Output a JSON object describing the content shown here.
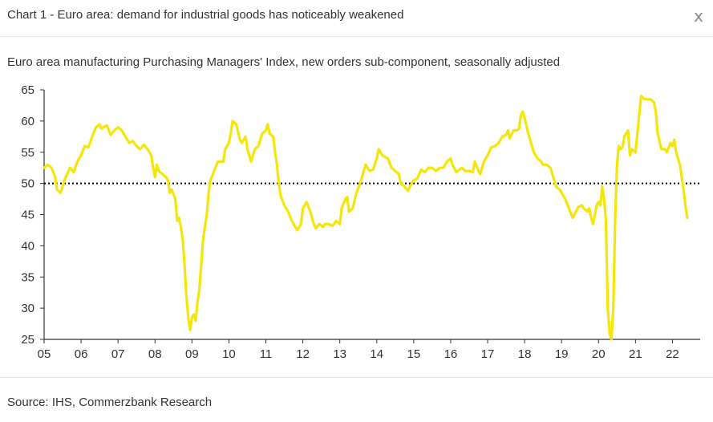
{
  "dialog": {
    "title": "Chart 1 - Euro area: demand for industrial goods has noticeably weakened",
    "close_label": "x"
  },
  "source": "Source: IHS, Commerzbank Research",
  "chart_data": {
    "type": "line",
    "title": "Euro area manufacturing Purchasing Managers' Index, new orders sub-component, seasonally adjusted",
    "xlabel": "",
    "ylabel": "",
    "ylim": [
      25,
      65
    ],
    "xlim": [
      2005.0,
      2022.75
    ],
    "yticks": [
      25,
      30,
      35,
      40,
      45,
      50,
      55,
      60,
      65
    ],
    "xticks": [
      {
        "value": 2005.0,
        "label": "05"
      },
      {
        "value": 2006.0,
        "label": "06"
      },
      {
        "value": 2007.0,
        "label": "07"
      },
      {
        "value": 2008.0,
        "label": "08"
      },
      {
        "value": 2009.0,
        "label": "09"
      },
      {
        "value": 2010.0,
        "label": "10"
      },
      {
        "value": 2011.0,
        "label": "11"
      },
      {
        "value": 2012.0,
        "label": "12"
      },
      {
        "value": 2013.0,
        "label": "13"
      },
      {
        "value": 2014.0,
        "label": "14"
      },
      {
        "value": 2015.0,
        "label": "15"
      },
      {
        "value": 2016.0,
        "label": "16"
      },
      {
        "value": 2017.0,
        "label": "17"
      },
      {
        "value": 2018.0,
        "label": "18"
      },
      {
        "value": 2019.0,
        "label": "19"
      },
      {
        "value": 2020.0,
        "label": "20"
      },
      {
        "value": 2021.0,
        "label": "21"
      },
      {
        "value": 2022.0,
        "label": "22"
      }
    ],
    "reference_line": {
      "value": 50,
      "style": "dotted"
    },
    "grid": false,
    "legend": "none",
    "series": [
      {
        "name": "Euro area manufacturing PMI new orders",
        "color": "#f5e60a",
        "points": [
          [
            2005.0,
            52.5
          ],
          [
            2005.1,
            53.0
          ],
          [
            2005.2,
            52.5
          ],
          [
            2005.3,
            51.0
          ],
          [
            2005.35,
            49.0
          ],
          [
            2005.45,
            48.5
          ],
          [
            2005.55,
            50.5
          ],
          [
            2005.7,
            52.5
          ],
          [
            2005.8,
            51.8
          ],
          [
            2005.9,
            53.5
          ],
          [
            2006.0,
            54.5
          ],
          [
            2006.1,
            56.0
          ],
          [
            2006.2,
            55.8
          ],
          [
            2006.3,
            57.5
          ],
          [
            2006.4,
            59.0
          ],
          [
            2006.5,
            59.5
          ],
          [
            2006.55,
            58.8
          ],
          [
            2006.7,
            59.3
          ],
          [
            2006.8,
            57.8
          ],
          [
            2006.9,
            58.5
          ],
          [
            2007.0,
            59.0
          ],
          [
            2007.1,
            58.5
          ],
          [
            2007.2,
            57.5
          ],
          [
            2007.3,
            56.5
          ],
          [
            2007.4,
            56.8
          ],
          [
            2007.5,
            56.0
          ],
          [
            2007.6,
            55.5
          ],
          [
            2007.7,
            56.2
          ],
          [
            2007.8,
            55.5
          ],
          [
            2007.9,
            54.5
          ],
          [
            2007.95,
            52.5
          ],
          [
            2008.0,
            51.0
          ],
          [
            2008.05,
            53.0
          ],
          [
            2008.1,
            52.0
          ],
          [
            2008.2,
            51.5
          ],
          [
            2008.3,
            51.0
          ],
          [
            2008.35,
            50.5
          ],
          [
            2008.4,
            48.5
          ],
          [
            2008.45,
            49.0
          ],
          [
            2008.55,
            47.5
          ],
          [
            2008.6,
            44.0
          ],
          [
            2008.65,
            44.5
          ],
          [
            2008.7,
            43.0
          ],
          [
            2008.75,
            41.0
          ],
          [
            2008.8,
            37.0
          ],
          [
            2008.85,
            32.0
          ],
          [
            2008.9,
            28.5
          ],
          [
            2008.95,
            26.5
          ],
          [
            2009.0,
            28.5
          ],
          [
            2009.05,
            29.0
          ],
          [
            2009.1,
            28.0
          ],
          [
            2009.15,
            31.0
          ],
          [
            2009.2,
            33.0
          ],
          [
            2009.25,
            37.0
          ],
          [
            2009.3,
            41.0
          ],
          [
            2009.35,
            43.0
          ],
          [
            2009.4,
            45.0
          ],
          [
            2009.45,
            48.5
          ],
          [
            2009.5,
            50.5
          ],
          [
            2009.6,
            52.0
          ],
          [
            2009.7,
            53.5
          ],
          [
            2009.8,
            53.5
          ],
          [
            2009.85,
            53.5
          ],
          [
            2009.9,
            55.5
          ],
          [
            2010.0,
            56.5
          ],
          [
            2010.05,
            58.0
          ],
          [
            2010.1,
            60.0
          ],
          [
            2010.2,
            59.5
          ],
          [
            2010.3,
            57.0
          ],
          [
            2010.35,
            56.5
          ],
          [
            2010.45,
            57.5
          ],
          [
            2010.5,
            55.5
          ],
          [
            2010.6,
            53.5
          ],
          [
            2010.7,
            55.5
          ],
          [
            2010.8,
            56.0
          ],
          [
            2010.9,
            58.0
          ],
          [
            2011.0,
            58.5
          ],
          [
            2011.05,
            59.5
          ],
          [
            2011.1,
            58.0
          ],
          [
            2011.2,
            57.5
          ],
          [
            2011.25,
            55.0
          ],
          [
            2011.3,
            53.0
          ],
          [
            2011.35,
            50.0
          ],
          [
            2011.4,
            48.0
          ],
          [
            2011.5,
            46.5
          ],
          [
            2011.6,
            45.5
          ],
          [
            2011.7,
            44.0
          ],
          [
            2011.8,
            43.0
          ],
          [
            2011.85,
            42.5
          ],
          [
            2011.95,
            43.5
          ],
          [
            2012.0,
            46.0
          ],
          [
            2012.1,
            47.0
          ],
          [
            2012.2,
            45.5
          ],
          [
            2012.3,
            43.5
          ],
          [
            2012.35,
            42.8
          ],
          [
            2012.45,
            43.5
          ],
          [
            2012.55,
            43.0
          ],
          [
            2012.6,
            43.5
          ],
          [
            2012.7,
            43.5
          ],
          [
            2012.8,
            43.2
          ],
          [
            2012.9,
            44.0
          ],
          [
            2013.0,
            43.5
          ],
          [
            2013.05,
            46.0
          ],
          [
            2013.15,
            47.5
          ],
          [
            2013.2,
            47.8
          ],
          [
            2013.25,
            45.5
          ],
          [
            2013.35,
            46.0
          ],
          [
            2013.45,
            48.5
          ],
          [
            2013.55,
            50.0
          ],
          [
            2013.6,
            51.0
          ],
          [
            2013.7,
            53.0
          ],
          [
            2013.8,
            52.0
          ],
          [
            2013.9,
            52.2
          ],
          [
            2014.0,
            54.0
          ],
          [
            2014.05,
            55.5
          ],
          [
            2014.15,
            54.5
          ],
          [
            2014.3,
            54.0
          ],
          [
            2014.4,
            52.5
          ],
          [
            2014.5,
            52.0
          ],
          [
            2014.6,
            51.5
          ],
          [
            2014.65,
            50.0
          ],
          [
            2014.75,
            49.5
          ],
          [
            2014.85,
            48.8
          ],
          [
            2014.9,
            49.5
          ],
          [
            2015.0,
            50.5
          ],
          [
            2015.1,
            50.8
          ],
          [
            2015.2,
            52.2
          ],
          [
            2015.3,
            51.8
          ],
          [
            2015.4,
            52.5
          ],
          [
            2015.5,
            52.5
          ],
          [
            2015.6,
            52.0
          ],
          [
            2015.7,
            52.5
          ],
          [
            2015.8,
            52.5
          ],
          [
            2015.9,
            53.5
          ],
          [
            2016.0,
            54.0
          ],
          [
            2016.05,
            53.0
          ],
          [
            2016.15,
            51.8
          ],
          [
            2016.3,
            52.5
          ],
          [
            2016.4,
            52.0
          ],
          [
            2016.5,
            52.0
          ],
          [
            2016.6,
            51.8
          ],
          [
            2016.65,
            53.5
          ],
          [
            2016.75,
            52.0
          ],
          [
            2016.8,
            51.5
          ],
          [
            2016.9,
            53.5
          ],
          [
            2017.0,
            54.5
          ],
          [
            2017.1,
            55.8
          ],
          [
            2017.2,
            56.0
          ],
          [
            2017.3,
            56.5
          ],
          [
            2017.4,
            57.5
          ],
          [
            2017.5,
            57.8
          ],
          [
            2017.55,
            58.5
          ],
          [
            2017.6,
            57.2
          ],
          [
            2017.7,
            58.5
          ],
          [
            2017.8,
            58.5
          ],
          [
            2017.85,
            58.8
          ],
          [
            2017.9,
            61.0
          ],
          [
            2017.95,
            61.5
          ],
          [
            2018.0,
            60.5
          ],
          [
            2018.1,
            58.0
          ],
          [
            2018.15,
            57.0
          ],
          [
            2018.25,
            55.0
          ],
          [
            2018.35,
            54.0
          ],
          [
            2018.45,
            53.5
          ],
          [
            2018.5,
            53.0
          ],
          [
            2018.6,
            53.0
          ],
          [
            2018.7,
            52.5
          ],
          [
            2018.75,
            51.5
          ],
          [
            2018.85,
            49.5
          ],
          [
            2018.95,
            49.0
          ],
          [
            2019.0,
            48.5
          ],
          [
            2019.1,
            47.5
          ],
          [
            2019.2,
            46.0
          ],
          [
            2019.3,
            44.5
          ],
          [
            2019.35,
            45.0
          ],
          [
            2019.45,
            46.2
          ],
          [
            2019.55,
            46.5
          ],
          [
            2019.6,
            46.0
          ],
          [
            2019.7,
            45.5
          ],
          [
            2019.75,
            46.0
          ],
          [
            2019.8,
            44.5
          ],
          [
            2019.85,
            43.5
          ],
          [
            2019.9,
            45.0
          ],
          [
            2019.95,
            46.5
          ],
          [
            2020.0,
            47.0
          ],
          [
            2020.05,
            46.5
          ],
          [
            2020.1,
            49.5
          ],
          [
            2020.15,
            47.5
          ],
          [
            2020.2,
            44.0
          ],
          [
            2020.25,
            30.0
          ],
          [
            2020.3,
            26.0
          ],
          [
            2020.35,
            25.0
          ],
          [
            2020.4,
            30.0
          ],
          [
            2020.45,
            44.0
          ],
          [
            2020.5,
            53.0
          ],
          [
            2020.55,
            56.0
          ],
          [
            2020.6,
            55.5
          ],
          [
            2020.65,
            55.8
          ],
          [
            2020.7,
            57.5
          ],
          [
            2020.8,
            58.5
          ],
          [
            2020.85,
            54.5
          ],
          [
            2020.9,
            55.5
          ],
          [
            2021.0,
            55.0
          ],
          [
            2021.05,
            58.0
          ],
          [
            2021.15,
            64.0
          ],
          [
            2021.25,
            63.5
          ],
          [
            2021.3,
            63.5
          ],
          [
            2021.4,
            63.5
          ],
          [
            2021.5,
            63.0
          ],
          [
            2021.55,
            61.5
          ],
          [
            2021.6,
            58.0
          ],
          [
            2021.7,
            55.5
          ],
          [
            2021.8,
            55.5
          ],
          [
            2021.85,
            55.0
          ],
          [
            2021.95,
            56.5
          ],
          [
            2022.0,
            56.0
          ],
          [
            2022.05,
            57.0
          ],
          [
            2022.1,
            55.0
          ],
          [
            2022.2,
            53.0
          ],
          [
            2022.3,
            49.0
          ],
          [
            2022.35,
            46.5
          ],
          [
            2022.4,
            44.5
          ]
        ]
      }
    ]
  }
}
